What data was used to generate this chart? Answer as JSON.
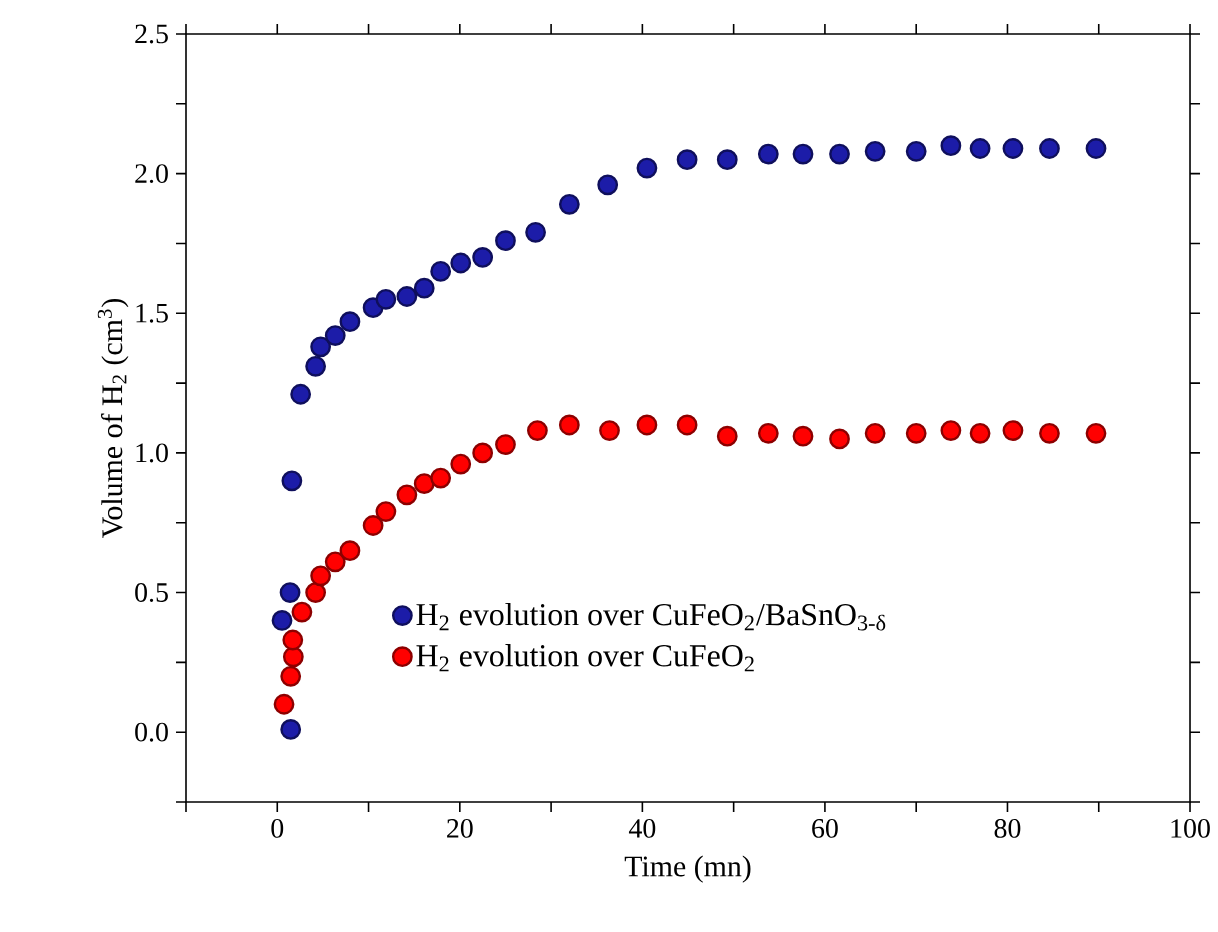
{
  "chart_data": {
    "type": "scatter",
    "xlabel": "Time (mn)",
    "ylabel": "Volume of H$_{2}$ (cm$^{3}$)",
    "xlim": [
      -10,
      100
    ],
    "ylim": [
      -0.25,
      2.5
    ],
    "xticks": [
      {
        "value": -10,
        "label": null
      },
      0,
      {
        "value": 10,
        "label": null
      },
      20,
      {
        "value": 30,
        "label": null
      },
      40,
      {
        "value": 50,
        "label": null
      },
      60,
      {
        "value": 70,
        "label": null
      },
      80,
      {
        "value": 90,
        "label": null
      },
      100
    ],
    "yticks": [
      {
        "value": -0.25,
        "label": null
      },
      {
        "value": 0,
        "label": "0.0"
      },
      {
        "value": 0.25,
        "label": null
      },
      0.5,
      {
        "value": 0.75,
        "label": null
      },
      {
        "value": 1,
        "label": "1.0"
      },
      {
        "value": 1.25,
        "label": null
      },
      1.5,
      {
        "value": 1.75,
        "label": null
      },
      {
        "value": 2,
        "label": "2.0"
      },
      {
        "value": 2.25,
        "label": null
      },
      2.5
    ],
    "marker": "circle",
    "legend": "bottom",
    "series": [
      {
        "name": "H$_{2}$ evolution over CuFeO$_{2}$/BaSnO$_{3-δ}$",
        "color": "#1c1ca8",
        "x": [
          1.47,
          0.52,
          1.4,
          1.6,
          2.56,
          4.2,
          4.75,
          6.35,
          7.96,
          10.5,
          11.9,
          14.2,
          16.1,
          17.9,
          20.1,
          22.5,
          25.0,
          28.3,
          32.0,
          36.2,
          40.5,
          44.9,
          49.3,
          53.8,
          57.6,
          61.6,
          65.5,
          70.0,
          73.8,
          77.0,
          80.6,
          84.6,
          89.7
        ],
        "values": [
          0.01,
          0.4,
          0.5,
          0.9,
          1.21,
          1.31,
          1.38,
          1.42,
          1.47,
          1.52,
          1.55,
          1.56,
          1.59,
          1.65,
          1.68,
          1.7,
          1.76,
          1.79,
          1.89,
          1.96,
          2.02,
          2.05,
          2.05,
          2.07,
          2.07,
          2.07,
          2.08,
          2.08,
          2.1,
          2.09,
          2.09,
          2.09,
          2.09
        ]
      },
      {
        "name": "H$_{2}$ evolution over CuFeO$_{2}$",
        "color": "#ff0000",
        "x": [
          0.74,
          1.47,
          1.76,
          1.7,
          2.7,
          4.2,
          4.75,
          6.35,
          7.96,
          10.5,
          11.9,
          14.2,
          16.1,
          17.9,
          20.1,
          22.5,
          25.0,
          28.5,
          32.0,
          36.4,
          40.5,
          44.9,
          49.3,
          53.8,
          57.6,
          61.6,
          65.5,
          70.0,
          73.8,
          77.0,
          80.6,
          84.6,
          89.7
        ],
        "values": [
          0.1,
          0.2,
          0.27,
          0.33,
          0.43,
          0.5,
          0.56,
          0.61,
          0.65,
          0.74,
          0.79,
          0.85,
          0.89,
          0.91,
          0.96,
          1.0,
          1.03,
          1.08,
          1.1,
          1.08,
          1.1,
          1.1,
          1.06,
          1.07,
          1.06,
          1.05,
          1.07,
          1.07,
          1.08,
          1.07,
          1.08,
          1.07,
          1.07
        ]
      }
    ]
  }
}
